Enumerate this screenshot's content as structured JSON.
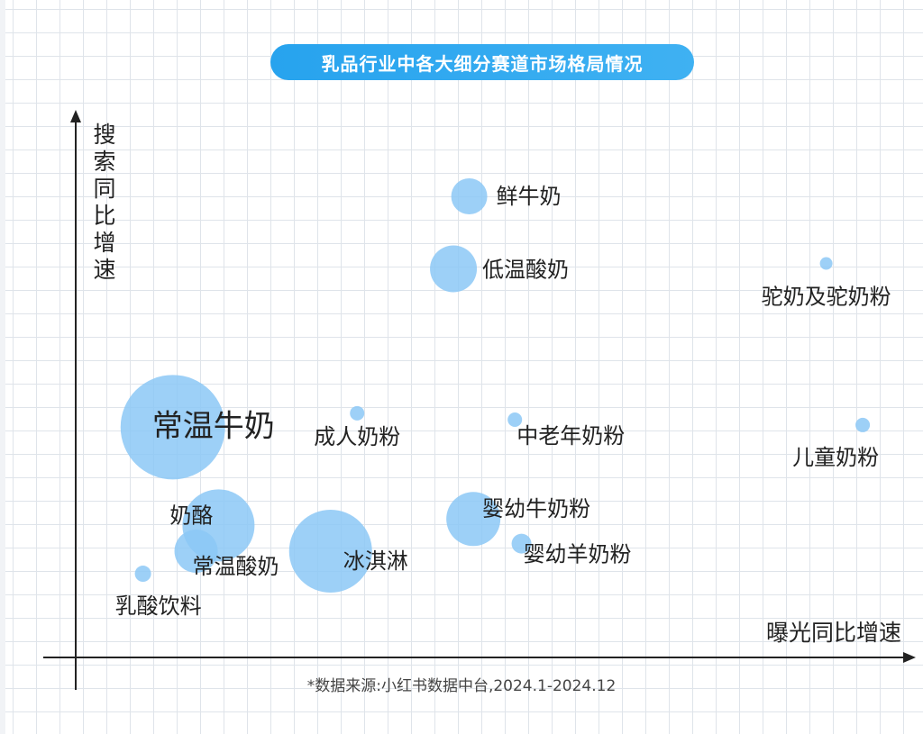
{
  "title": "乳品行业中各大细分赛道市场格局情况",
  "footer_note": "*数据来源:小红书数据中台,2024.1-2024.12",
  "colors": {
    "bubble": "#8cc8f6",
    "accent": "#2fa8ef",
    "axis": "#222222"
  },
  "chart_data": {
    "type": "scatter",
    "title": "乳品行业中各大细分赛道市场格局情况",
    "xlabel": "曝光同比增速",
    "ylabel": "搜索同比增速",
    "xlim": [
      0,
      100
    ],
    "ylim": [
      0,
      100
    ],
    "grid": true,
    "legend": "none",
    "points": [
      {
        "label": "鲜牛奶",
        "x": 47.4,
        "y": 85.9,
        "size": 20
      },
      {
        "label": "低温酸奶",
        "x": 45.5,
        "y": 72.4,
        "size": 26
      },
      {
        "label": "驼奶及驼奶粉",
        "x": 90.4,
        "y": 73.4,
        "size": 7
      },
      {
        "label": "常温牛奶",
        "x": 11.7,
        "y": 42.9,
        "size": 58
      },
      {
        "label": "成人奶粉",
        "x": 33.9,
        "y": 45.5,
        "size": 8
      },
      {
        "label": "中老年奶粉",
        "x": 52.9,
        "y": 44.3,
        "size": 8
      },
      {
        "label": "儿童奶粉",
        "x": 94.8,
        "y": 43.3,
        "size": 8
      },
      {
        "label": "奶酪",
        "x": 17.2,
        "y": 24.6,
        "size": 40
      },
      {
        "label": "婴幼牛奶粉",
        "x": 47.9,
        "y": 25.8,
        "size": 30
      },
      {
        "label": "婴幼羊奶粉",
        "x": 53.7,
        "y": 21.2,
        "size": 11
      },
      {
        "label": "冰淇淋",
        "x": 30.7,
        "y": 19.8,
        "size": 46
      },
      {
        "label": "常温酸奶",
        "x": 14.5,
        "y": 19.8,
        "size": 24
      },
      {
        "label": "乳酸饮料",
        "x": 8.1,
        "y": 15.6,
        "size": 9
      }
    ]
  }
}
